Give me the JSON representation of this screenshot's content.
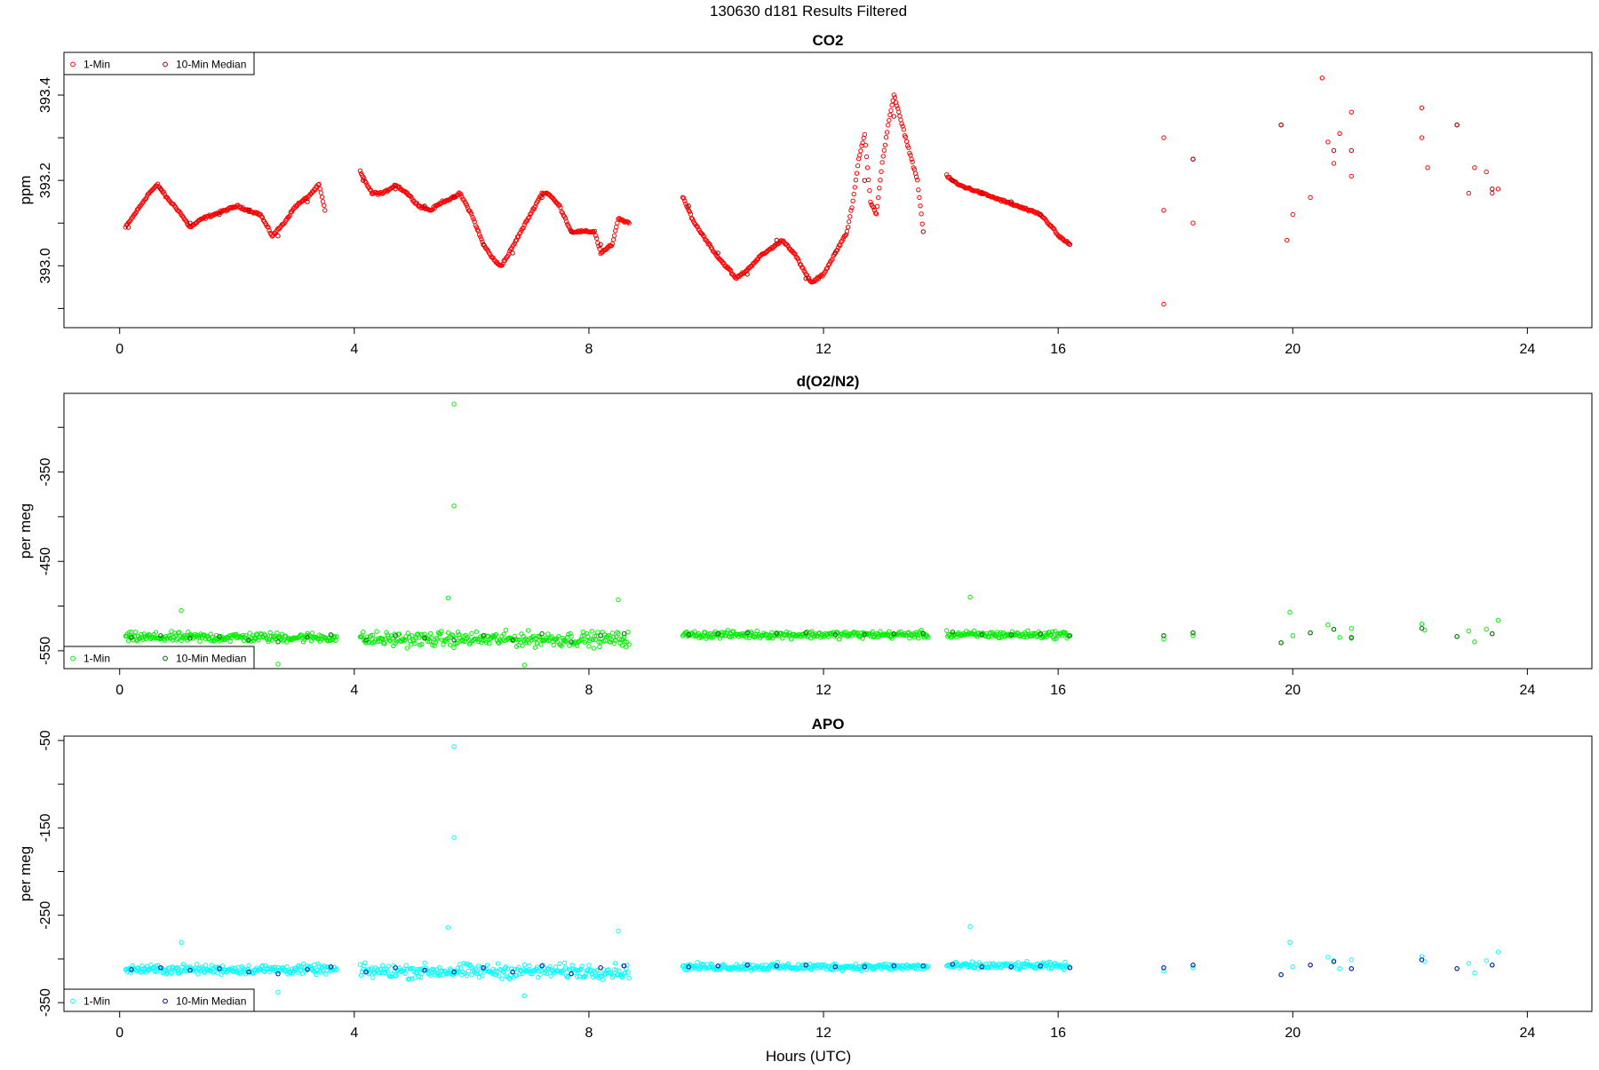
{
  "figure": {
    "title": "130630   d181   Results Filtered",
    "xlabel": "Hours (UTC)"
  },
  "chart_data": [
    {
      "type": "scatter",
      "title": "CO2",
      "ylabel": "ppm",
      "xlim": [
        -0.95,
        25.1
      ],
      "ylim": [
        392.855,
        393.5
      ],
      "x_ticks": [
        0,
        4,
        8,
        12,
        16,
        20,
        24
      ],
      "y_ticks": [
        393.0,
        393.2,
        393.4
      ],
      "y_tick_labels": [
        "393.0",
        "393.2",
        "393.4"
      ],
      "legend": [
        "1-Min",
        "10-Min Median"
      ],
      "legend_position": "top-left",
      "colors": {
        "one_min": "#ff0000",
        "median": "#990000"
      },
      "segments": [
        {
          "x": [
            0.1,
            0.3,
            0.5,
            0.65,
            0.8,
            1.0,
            1.2,
            1.4,
            1.6,
            1.8,
            2.0,
            2.2,
            2.4,
            2.6,
            2.8,
            3.0,
            3.2,
            3.4,
            3.5
          ],
          "y": [
            393.09,
            393.13,
            393.17,
            393.19,
            393.16,
            393.13,
            393.09,
            393.11,
            393.12,
            393.13,
            393.14,
            393.13,
            393.12,
            393.07,
            393.1,
            393.14,
            393.16,
            393.19,
            393.13
          ]
        },
        {
          "x": [
            4.1,
            4.3,
            4.5,
            4.7,
            4.9,
            5.1,
            5.3,
            5.5,
            5.7,
            5.8,
            6.0,
            6.2,
            6.4,
            6.5,
            6.6,
            6.8,
            7.0,
            7.2,
            7.3,
            7.5,
            7.7,
            7.9,
            8.1,
            8.2,
            8.4,
            8.5,
            8.7
          ],
          "y": [
            393.22,
            393.17,
            393.17,
            393.19,
            393.17,
            393.14,
            393.13,
            393.15,
            393.16,
            393.17,
            393.12,
            393.05,
            393.01,
            393.0,
            393.02,
            393.07,
            393.12,
            393.17,
            393.17,
            393.14,
            393.08,
            393.08,
            393.08,
            393.03,
            393.05,
            393.11,
            393.1
          ]
        },
        {
          "x": [
            9.6,
            9.8,
            10.0,
            10.2,
            10.4,
            10.5,
            10.7,
            10.9,
            11.1,
            11.3,
            11.5,
            11.7,
            11.8,
            12.0,
            12.2,
            12.4,
            12.5,
            12.6,
            12.7,
            12.8,
            12.9,
            13.0,
            13.1,
            13.2,
            13.3,
            13.4,
            13.5,
            13.6,
            13.7
          ],
          "y": [
            393.16,
            393.1,
            393.06,
            393.02,
            392.99,
            392.97,
            392.99,
            393.02,
            393.04,
            393.06,
            393.03,
            392.98,
            392.96,
            392.98,
            393.03,
            393.08,
            393.15,
            393.25,
            393.31,
            393.15,
            393.12,
            393.24,
            393.33,
            393.4,
            393.35,
            393.3,
            393.25,
            393.2,
            393.08
          ]
        },
        {
          "x": [
            14.1,
            14.3,
            14.5,
            14.7,
            14.9,
            15.1,
            15.3,
            15.5,
            15.7,
            15.9,
            16.0,
            16.1,
            16.2
          ],
          "y": [
            393.21,
            393.19,
            393.18,
            393.17,
            393.16,
            393.15,
            393.14,
            393.13,
            393.12,
            393.09,
            393.07,
            393.06,
            393.05
          ]
        }
      ],
      "sparse_points": {
        "x": [
          17.8,
          17.8,
          17.8,
          18.3,
          18.3,
          19.8,
          19.9,
          20.0,
          20.3,
          20.5,
          20.6,
          20.7,
          20.8,
          21.0,
          21.0,
          22.2,
          22.2,
          22.3,
          22.8,
          23.0,
          23.1,
          23.3,
          23.4,
          23.5
        ],
        "y": [
          393.3,
          393.13,
          392.91,
          393.25,
          393.1,
          393.33,
          393.06,
          393.12,
          393.16,
          393.44,
          393.29,
          393.24,
          393.31,
          393.36,
          393.21,
          393.37,
          393.3,
          393.23,
          393.33,
          393.17,
          393.23,
          393.22,
          393.17,
          393.18
        ]
      },
      "median_points": {
        "x": [
          0.15,
          0.7,
          1.2,
          1.7,
          2.2,
          2.7,
          3.2,
          4.15,
          4.7,
          5.2,
          5.7,
          6.2,
          6.7,
          7.2,
          7.7,
          8.2,
          9.7,
          10.2,
          10.7,
          11.2,
          11.7,
          12.2,
          12.7,
          13.2,
          13.7,
          14.2,
          14.7,
          15.2,
          15.7,
          16.2,
          18.3,
          19.8,
          20.7,
          21.0,
          22.8,
          23.4
        ],
        "y": [
          393.09,
          393.18,
          393.1,
          393.12,
          393.13,
          393.07,
          393.15,
          393.2,
          393.18,
          393.14,
          393.16,
          393.05,
          393.03,
          393.16,
          393.08,
          393.05,
          393.14,
          393.03,
          392.98,
          393.06,
          392.97,
          393.03,
          393.2,
          393.35,
          393.08,
          393.2,
          393.17,
          393.15,
          393.12,
          393.05,
          393.25,
          393.33,
          393.27,
          393.27,
          393.33,
          393.18
        ]
      }
    },
    {
      "type": "scatter",
      "title": "d(O2/N2)",
      "ylabel": "per meg",
      "xlim": [
        -0.95,
        25.1
      ],
      "ylim": [
        -570,
        -262
      ],
      "x_ticks": [
        0,
        4,
        8,
        12,
        16,
        20,
        24
      ],
      "y_ticks": [
        -550,
        -450,
        -350
      ],
      "y_tick_labels": [
        "-550",
        "-450",
        "-350"
      ],
      "legend": [
        "1-Min",
        "10-Min Median"
      ],
      "legend_position": "bottom-left",
      "colors": {
        "one_min": "#00ee00",
        "median": "#006600"
      },
      "segments": [
        {
          "x": [
            0.1,
            3.7
          ],
          "center": -535,
          "spread": 8
        },
        {
          "x": [
            4.1,
            8.7
          ],
          "center": -537,
          "spread": 12
        },
        {
          "x": [
            9.6,
            13.8
          ],
          "center": -532,
          "spread": 6
        },
        {
          "x": [
            14.1,
            16.2
          ],
          "center": -532,
          "spread": 6
        }
      ],
      "outliers": {
        "x": [
          5.7,
          5.7,
          5.6,
          1.05,
          8.5,
          14.5,
          2.7,
          6.9
        ],
        "y": [
          -274,
          -388,
          -491,
          -505,
          -493,
          -490,
          -565,
          -566
        ]
      },
      "sparse_points": {
        "x": [
          17.8,
          17.8,
          18.3,
          18.3,
          19.8,
          19.95,
          20.0,
          20.3,
          20.6,
          20.7,
          20.8,
          21.0,
          21.0,
          22.2,
          22.25,
          22.8,
          23.0,
          23.1,
          23.3,
          23.4,
          23.5
        ],
        "y": [
          -533,
          -537,
          -530,
          -533,
          -541,
          -507,
          -533,
          -530,
          -521,
          -526,
          -535,
          -525,
          -536,
          -520,
          -527,
          -534,
          -528,
          -540,
          -526,
          -531,
          -516
        ]
      },
      "median_points": {
        "x": [
          0.2,
          0.7,
          1.2,
          1.7,
          2.2,
          2.7,
          3.2,
          3.6,
          4.2,
          4.7,
          5.2,
          5.7,
          6.2,
          6.7,
          7.2,
          7.7,
          8.2,
          8.6,
          9.7,
          10.2,
          10.7,
          11.2,
          11.7,
          12.2,
          12.7,
          13.2,
          13.7,
          14.2,
          14.7,
          15.2,
          15.7,
          16.2,
          17.8,
          18.3,
          19.8,
          20.3,
          20.7,
          21.0,
          22.2,
          22.8,
          23.4
        ],
        "y": [
          -535,
          -533,
          -536,
          -534,
          -538,
          -540,
          -535,
          -532,
          -538,
          -533,
          -536,
          -538,
          -533,
          -538,
          -531,
          -540,
          -533,
          -531,
          -532,
          -531,
          -530,
          -531,
          -530,
          -532,
          -532,
          -531,
          -531,
          -529,
          -532,
          -532,
          -531,
          -533,
          -533,
          -530,
          -541,
          -530,
          -526,
          -535,
          -525,
          -534,
          -531
        ]
      }
    },
    {
      "type": "scatter",
      "title": "APO",
      "ylabel": "per meg",
      "xlim": [
        -0.95,
        25.1
      ],
      "ylim": [
        -360,
        -45
      ],
      "x_ticks": [
        0,
        4,
        8,
        12,
        16,
        20,
        24
      ],
      "y_ticks": [
        -350,
        -250,
        -150,
        -50
      ],
      "y_tick_labels": [
        "-350",
        "-250",
        "-150",
        "-50"
      ],
      "legend": [
        "1-Min",
        "10-Min Median"
      ],
      "legend_position": "bottom-left",
      "colors": {
        "one_min": "#00ffff",
        "median": "#000099"
      },
      "segments": [
        {
          "x": [
            0.1,
            3.7
          ],
          "center": -312,
          "spread": 8
        },
        {
          "x": [
            4.1,
            8.7
          ],
          "center": -314,
          "spread": 12
        },
        {
          "x": [
            9.6,
            13.8
          ],
          "center": -309,
          "spread": 6
        },
        {
          "x": [
            14.1,
            16.2
          ],
          "center": -308,
          "spread": 6
        }
      ],
      "outliers": {
        "x": [
          5.7,
          5.7,
          5.6,
          1.05,
          8.5,
          14.5,
          2.7,
          6.9
        ],
        "y": [
          -57,
          -161,
          -264,
          -281,
          -268,
          -263,
          -338,
          -342
        ]
      },
      "sparse_points": {
        "x": [
          17.8,
          17.8,
          18.3,
          18.3,
          19.8,
          19.95,
          20.0,
          20.3,
          20.6,
          20.7,
          20.8,
          21.0,
          21.0,
          22.2,
          22.25,
          22.8,
          23.0,
          23.1,
          23.3,
          23.4,
          23.5
        ],
        "y": [
          -310,
          -314,
          -307,
          -310,
          -318,
          -281,
          -309,
          -307,
          -298,
          -302,
          -311,
          -301,
          -311,
          -297,
          -303,
          -311,
          -305,
          -316,
          -302,
          -307,
          -292
        ]
      },
      "median_points": {
        "x": [
          0.2,
          0.7,
          1.2,
          1.7,
          2.2,
          2.7,
          3.2,
          3.6,
          4.2,
          4.7,
          5.2,
          5.7,
          6.2,
          6.7,
          7.2,
          7.7,
          8.2,
          8.6,
          9.7,
          10.2,
          10.7,
          11.2,
          11.7,
          12.2,
          12.7,
          13.2,
          13.7,
          14.2,
          14.7,
          15.2,
          15.7,
          16.2,
          17.8,
          18.3,
          19.8,
          20.3,
          20.7,
          21.0,
          22.2,
          22.8,
          23.4
        ],
        "y": [
          -312,
          -310,
          -313,
          -311,
          -315,
          -317,
          -312,
          -309,
          -315,
          -310,
          -313,
          -315,
          -310,
          -315,
          -308,
          -317,
          -310,
          -308,
          -309,
          -308,
          -307,
          -308,
          -307,
          -309,
          -309,
          -308,
          -308,
          -306,
          -309,
          -309,
          -308,
          -310,
          -310,
          -307,
          -318,
          -307,
          -303,
          -311,
          -301,
          -311,
          -307
        ]
      }
    }
  ]
}
